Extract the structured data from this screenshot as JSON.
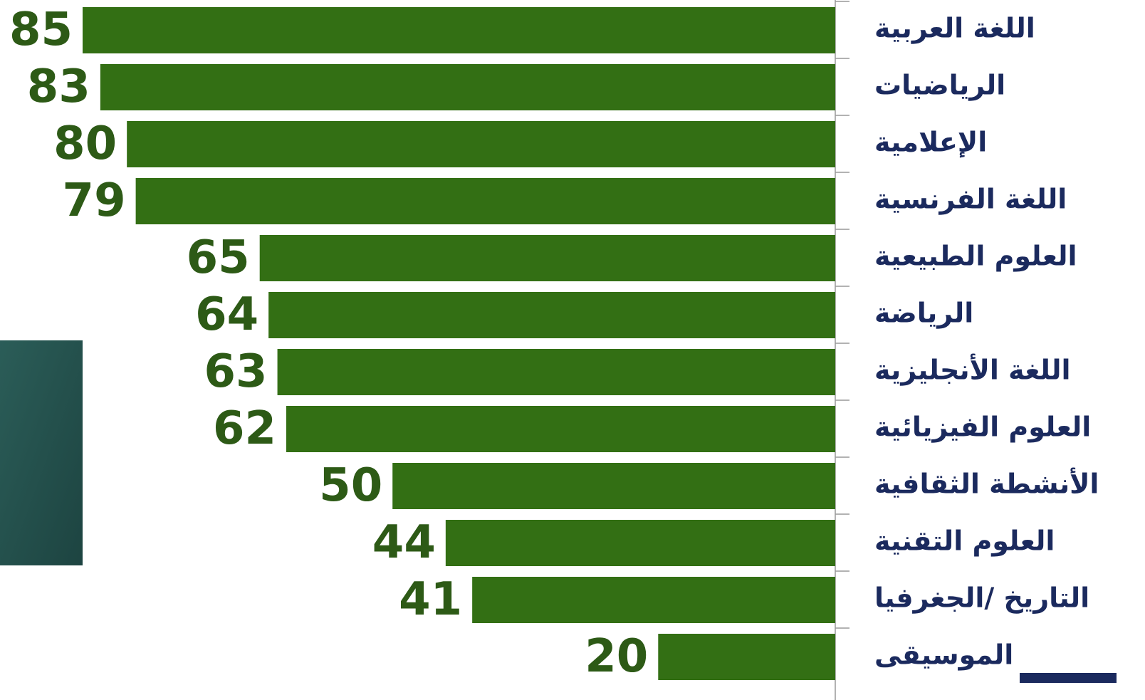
{
  "chart_data": {
    "type": "hbar",
    "categories": [
      "اللغة العربية",
      "الرياضيات",
      "الإعلامية",
      "اللغة الفرنسية",
      "العلوم الطبيعية",
      "الرياضة",
      "اللغة الأنجليزية",
      "العلوم الفيزيائية",
      "الأنشطة الثقافية",
      "العلوم التقنية",
      "التاريخ /الجغرفيا",
      "الموسيقى"
    ],
    "values": [
      85,
      83,
      80,
      79,
      65,
      64,
      63,
      62,
      50,
      44,
      41,
      20
    ],
    "color": "#336f14",
    "xlim": [
      0,
      85
    ]
  }
}
